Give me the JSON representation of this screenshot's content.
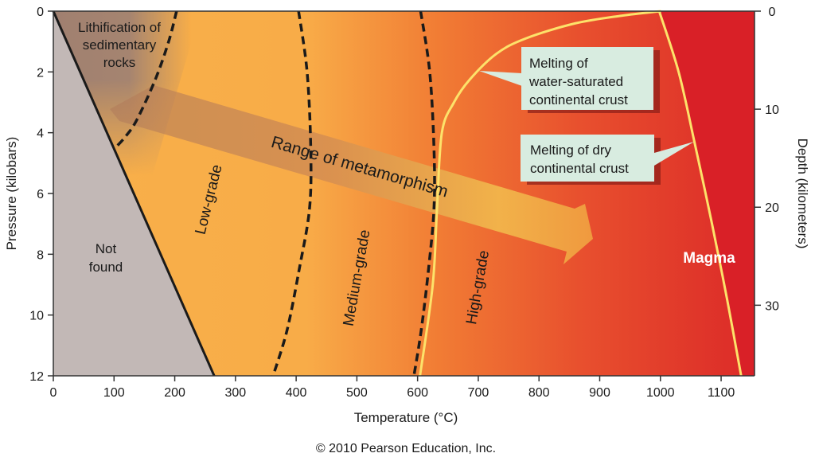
{
  "chart_data": {
    "type": "diagram",
    "title": "",
    "xlabel": "Temperature (°C)",
    "ylabel": "Pressure (kilobars)",
    "y2label": "Depth (kilometers)",
    "xlim": [
      0,
      1155
    ],
    "ylim": [
      0,
      12
    ],
    "y2lim": [
      0,
      37.2
    ],
    "xticks": [
      0,
      100,
      200,
      300,
      400,
      500,
      600,
      700,
      800,
      900,
      1000,
      1100
    ],
    "yticks": [
      0,
      2,
      4,
      6,
      8,
      10,
      12
    ],
    "y2ticks": [
      0,
      10,
      20,
      30
    ],
    "boundaries": {
      "not_found_limit": [
        [
          0,
          0
        ],
        [
          265,
          12
        ]
      ],
      "lithification_limit": [
        [
          203,
          0
        ],
        [
          190,
          1
        ],
        [
          168,
          2.25
        ],
        [
          138,
          3.56
        ],
        [
          120,
          4.1
        ],
        [
          102,
          4.5
        ]
      ],
      "low_medium": [
        [
          404,
          0
        ],
        [
          418,
          2
        ],
        [
          424,
          4.5
        ],
        [
          422,
          6.5
        ],
        [
          405,
          8.5
        ],
        [
          385,
          10.5
        ],
        [
          362,
          12
        ]
      ],
      "medium_high": [
        [
          605,
          0
        ],
        [
          620,
          2
        ],
        [
          627,
          4.5
        ],
        [
          627,
          6.5
        ],
        [
          618,
          8.5
        ],
        [
          606,
          10.5
        ],
        [
          594,
          12
        ]
      ],
      "wet_melting": [
        [
          604,
          12
        ],
        [
          625,
          9
        ],
        [
          632,
          6.5
        ],
        [
          640,
          4
        ],
        [
          660,
          3
        ],
        [
          686,
          2.25
        ],
        [
          730,
          1.4
        ],
        [
          778,
          0.9
        ],
        [
          860,
          0.4
        ],
        [
          936,
          0.15
        ],
        [
          1001,
          0
        ]
      ],
      "dry_melting": [
        [
          998,
          0
        ],
        [
          1030,
          2
        ],
        [
          1056,
          4.3
        ],
        [
          1085,
          7
        ],
        [
          1110,
          9.5
        ],
        [
          1133,
          12
        ]
      ]
    },
    "labels": {
      "lithification": [
        "Lithification of",
        "sedimentary",
        "rocks"
      ],
      "not_found": [
        "Not",
        "found"
      ],
      "low_grade": "Low-grade",
      "medium_grade": "Medium-grade",
      "high_grade": "High-grade",
      "range": "Range of metamorphism",
      "magma": "Magma",
      "wet_callout": [
        "Melting of",
        "water-saturated",
        "continental crust"
      ],
      "dry_callout": [
        "Melting of dry",
        "continental crust"
      ]
    },
    "colors": {
      "not_found": "#c2b8b6",
      "low": "#f8b04a",
      "mid": "#f07a32",
      "high": "#e4402c",
      "magma": "#d92027",
      "melt_line": "#fde26a",
      "callout": "#d8ece0"
    }
  },
  "credit": "© 2010 Pearson Education, Inc."
}
